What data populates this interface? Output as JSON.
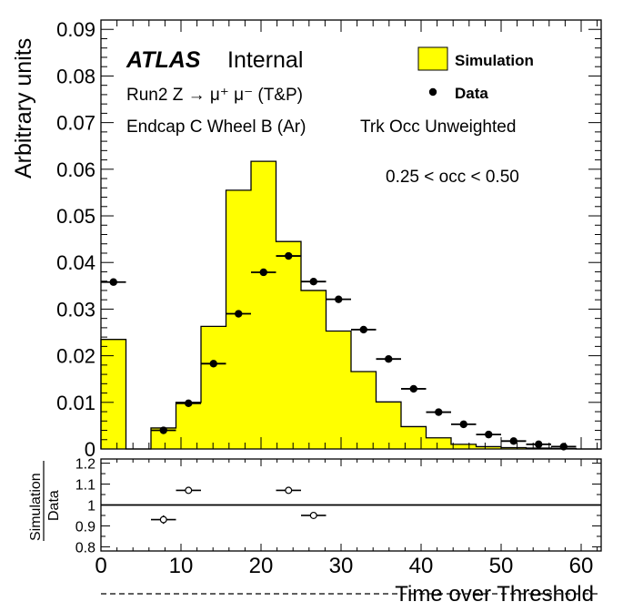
{
  "chart_data": {
    "type": "histogram",
    "main": {
      "ylabel": "Arbitrary units",
      "ylim": [
        0,
        0.092
      ],
      "yticks": [
        "0",
        "0.01",
        "0.02",
        "0.03",
        "0.04",
        "0.05",
        "0.06",
        "0.07",
        "0.08",
        "0.09"
      ],
      "bin_edges": [
        0,
        3.125,
        6.25,
        9.375,
        12.5,
        15.625,
        18.75,
        21.875,
        25,
        28.125,
        31.25,
        34.375,
        37.5,
        40.625,
        43.75,
        46.875,
        50,
        53.125,
        56.25,
        59.375,
        62.5
      ],
      "series": [
        {
          "name": "Simulation",
          "style": "filled-step",
          "color": "#ffff00",
          "values": [
            0.0235,
            0,
            0.0045,
            0.01,
            0.0263,
            0.0555,
            0.0617,
            0.0445,
            0.034,
            0.0253,
            0.0166,
            0.0101,
            0.0048,
            0.0024,
            0.001,
            0.0005,
            0.0003,
            0.0002,
            0.0001,
            0
          ]
        },
        {
          "name": "Data",
          "style": "points",
          "color": "#000000",
          "x": [
            1.5625,
            7.8125,
            10.9375,
            14.0625,
            17.1875,
            20.3125,
            23.4375,
            26.5625,
            29.6875,
            32.8125,
            35.9375,
            39.0625,
            42.1875,
            45.3125,
            48.4375,
            51.5625,
            54.6875,
            57.8125
          ],
          "y": [
            0.0358,
            0.004,
            0.0098,
            0.0183,
            0.029,
            0.0379,
            0.0414,
            0.0359,
            0.0321,
            0.0256,
            0.0193,
            0.0129,
            0.0079,
            0.0053,
            0.0031,
            0.0017,
            0.001,
            0.0005
          ]
        }
      ]
    },
    "ratio": {
      "ylabel_num": "Simulation",
      "ylabel_den": "Data",
      "ylim": [
        0.78,
        1.22
      ],
      "yticks": [
        "0.8",
        "0.9",
        "1",
        "1.1",
        "1.2"
      ],
      "reference": 1,
      "points": [
        {
          "x": 7.8125,
          "y": 0.93,
          "err": 0.02
        },
        {
          "x": 10.9375,
          "y": 1.07,
          "err": 0.012
        },
        {
          "x": 23.4375,
          "y": 1.07,
          "err": 0.005
        },
        {
          "x": 26.5625,
          "y": 0.95,
          "err": 0.005
        }
      ]
    },
    "x_axis": {
      "label": "Time over Threshold",
      "xlim": [
        0,
        62.5
      ],
      "ticks": [
        "0",
        "10",
        "20",
        "30",
        "40",
        "50",
        "60"
      ]
    },
    "annotations": {
      "atlas": "ATLAS",
      "internal": "Internal",
      "process": "Run2 Z → μ⁺ μ⁻ (T&P)",
      "region": "Endcap C Wheel B (Ar)",
      "weighting": "Trk Occ Unweighted",
      "occupancy": "0.25 < occ < 0.50"
    },
    "legend": {
      "placement": "top-right",
      "entries": [
        "Simulation",
        "Data"
      ]
    }
  }
}
